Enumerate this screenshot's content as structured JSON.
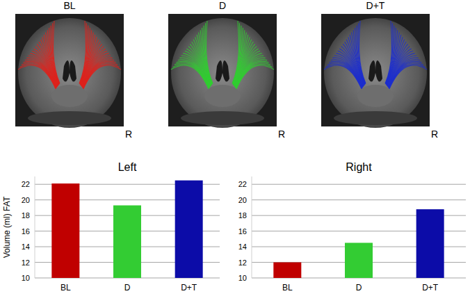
{
  "chart_data": [
    {
      "type": "bar",
      "title": "Left",
      "ylabel": "Volume (ml) FAT",
      "categories": [
        "BL",
        "D",
        "D+T"
      ],
      "values": [
        22.1,
        19.3,
        22.5
      ],
      "colors": [
        "#c00000",
        "#33cc33",
        "#0c0ca8"
      ],
      "ylim": [
        10,
        23
      ],
      "yticks": [
        10,
        12,
        14,
        16,
        18,
        20,
        22
      ],
      "grid": true
    },
    {
      "type": "bar",
      "title": "Right",
      "categories": [
        "BL",
        "D",
        "D+T"
      ],
      "values": [
        12,
        14.5,
        18.8
      ],
      "colors": [
        "#c00000",
        "#33cc33",
        "#0c0ca8"
      ],
      "ylim": [
        10,
        23
      ],
      "yticks": [
        10,
        12,
        14,
        16,
        18,
        20,
        22
      ],
      "grid": true
    }
  ],
  "images": [
    {
      "label": "BL",
      "side": "R",
      "color": "#e0201a"
    },
    {
      "label": "D",
      "side": "R",
      "color": "#2fcf2f"
    },
    {
      "label": "D+T",
      "side": "R",
      "color": "#1a2bd0"
    }
  ]
}
